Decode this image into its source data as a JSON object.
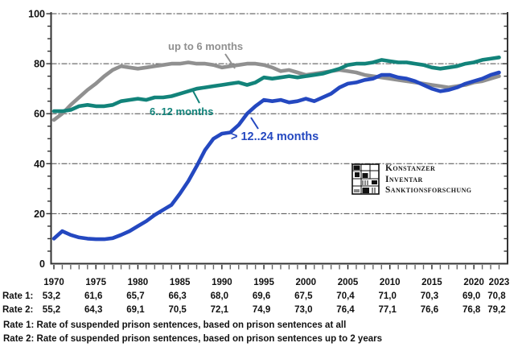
{
  "chart_data": {
    "type": "line",
    "title": "",
    "xlabel": "",
    "ylabel": "",
    "ylim": [
      0,
      100
    ],
    "yticks": [
      0,
      20,
      40,
      60,
      80,
      100
    ],
    "xticklabels": [
      1970,
      1975,
      1980,
      1985,
      1990,
      1995,
      2000,
      2005,
      2010,
      2015,
      2020,
      2023
    ],
    "grid": "horizontal dashed gridlines at labeled y ticks",
    "legend_position": "inline labels next to lines",
    "x": [
      1970,
      1971,
      1972,
      1973,
      1974,
      1975,
      1976,
      1977,
      1978,
      1979,
      1980,
      1981,
      1982,
      1983,
      1984,
      1985,
      1986,
      1987,
      1988,
      1989,
      1990,
      1991,
      1992,
      1993,
      1994,
      1995,
      1996,
      1997,
      1998,
      1999,
      2000,
      2001,
      2002,
      2003,
      2004,
      2005,
      2006,
      2007,
      2008,
      2009,
      2010,
      2011,
      2012,
      2013,
      2014,
      2015,
      2016,
      2017,
      2018,
      2019,
      2020,
      2021,
      2022,
      2023
    ],
    "series": [
      {
        "name": "up to 6 months",
        "color": "#909090",
        "values": [
          57.5,
          60,
          63.5,
          66.5,
          69.5,
          72,
          75,
          77.5,
          79,
          78.5,
          78,
          78.5,
          79,
          79.5,
          80,
          80,
          80.5,
          80,
          80,
          79.5,
          78.5,
          79,
          79.5,
          80,
          80,
          79.5,
          78.5,
          77,
          77.5,
          76.5,
          75.5,
          76,
          76.5,
          77,
          77.5,
          77,
          76.5,
          75.5,
          75,
          74.5,
          74,
          73.5,
          73,
          72.5,
          72,
          71.5,
          71,
          70.5,
          71,
          71.5,
          72.5,
          73,
          74,
          75
        ]
      },
      {
        "name": "6..12 months",
        "color": "#12837a",
        "values": [
          61,
          61,
          61.5,
          63,
          63.5,
          63,
          63,
          63.5,
          65,
          65.5,
          66,
          65.5,
          66.5,
          66.5,
          67,
          68,
          69,
          70,
          70.5,
          71,
          71.5,
          72,
          72.5,
          71.5,
          72.5,
          74.5,
          74,
          74.5,
          75,
          74.5,
          75,
          75.5,
          76,
          77,
          78,
          79.5,
          80,
          80,
          80.5,
          81.5,
          81,
          80.5,
          80.5,
          80,
          79.5,
          78.5,
          78,
          78.5,
          79,
          80,
          80.5,
          81.5,
          82,
          82.5
        ]
      },
      {
        "name": "> 12..24 months",
        "color": "#2448c0",
        "values": [
          10,
          13,
          11.5,
          10.5,
          10,
          9.8,
          9.8,
          10.2,
          11.5,
          13,
          15,
          17,
          19.5,
          21.5,
          23.5,
          28,
          33,
          39,
          45.5,
          50,
          52,
          52.5,
          55.5,
          60,
          63,
          65.5,
          65,
          65.5,
          64.5,
          65,
          66,
          65,
          66.5,
          68,
          70.5,
          72,
          72.5,
          73.5,
          74,
          75.5,
          75.5,
          74.5,
          74,
          73,
          71.5,
          70,
          69,
          69.5,
          70.5,
          72,
          73,
          74,
          75.5,
          76.5
        ]
      }
    ]
  },
  "logo": {
    "line1": "Konstanzer",
    "line2": "Inventar",
    "line3": "Sanktionsforschung"
  },
  "table": {
    "rate1_label": "Rate 1:",
    "rate2_label": "Rate 2:",
    "years": [
      "1970",
      "1975",
      "1980",
      "1985",
      "1990",
      "1995",
      "2000",
      "2005",
      "2010",
      "2015",
      "2020",
      "2023"
    ],
    "rate1": [
      "53,2",
      "61,6",
      "65,7",
      "66,3",
      "68,0",
      "69,6",
      "67,5",
      "70,4",
      "71,0",
      "70,3",
      "69,0",
      "70,8"
    ],
    "rate2": [
      "55,2",
      "64,3",
      "69,1",
      "70,5",
      "72,1",
      "74,9",
      "73,0",
      "76,4",
      "77,1",
      "76,6",
      "76,8",
      "79,2"
    ]
  },
  "footnotes": [
    "Rate 1: Rate of suspended prison sentences, based on prison sentences at all",
    "Rate 2: Rate of suspended prison sentences, based on prison sentences up to 2 years"
  ],
  "colors": {
    "axis": "#333333",
    "grid": "#4a4a4a",
    "text": "#111111"
  }
}
